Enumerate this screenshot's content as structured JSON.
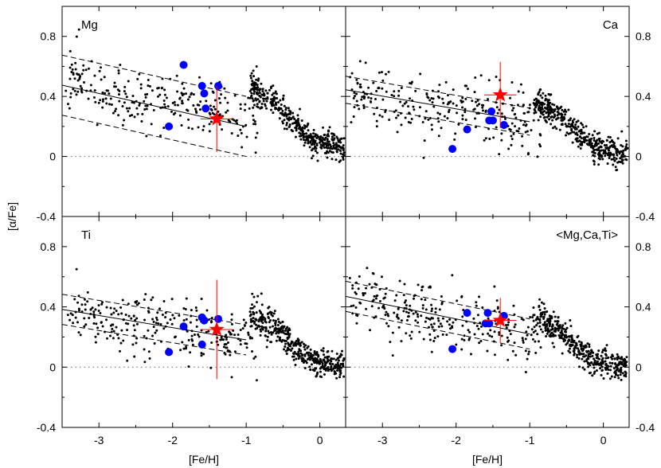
{
  "figure": {
    "xlabel": "[Fe/H]",
    "ylabel": "[α/Fe]"
  },
  "chart_data": {
    "type": "scatter",
    "xlim": [
      -3.5,
      0.35
    ],
    "ylim": [
      -0.4,
      1.0
    ],
    "x_ticks": [
      -3,
      -2,
      -1,
      0
    ],
    "x_tick_labels": [
      "-3",
      "-2",
      "-1",
      "0"
    ],
    "y_ticks": [
      -0.4,
      0,
      0.4,
      0.8
    ],
    "y_tick_labels": [
      "-0.4",
      "0",
      "0.4",
      "0.8"
    ],
    "colors": {
      "field": "#000000",
      "clusters": "#0000ff",
      "target": "#ff0000",
      "trend": "#000000"
    },
    "panels": [
      {
        "label": "Mg",
        "label_position": "top-left",
        "trend": {
          "slope": -0.11,
          "intercept": 0.09,
          "x_range": [
            -3.5,
            -1.0
          ],
          "band": 0.2
        },
        "field_cloud": {
          "seed": 11,
          "offset": 0.04,
          "knee": -0.65,
          "plateau_scale": 1.0
        },
        "clusters": [
          {
            "x": -1.85,
            "y": 0.61
          },
          {
            "x": -1.6,
            "y": 0.47
          },
          {
            "x": -1.38,
            "y": 0.47
          },
          {
            "x": -1.57,
            "y": 0.42
          },
          {
            "x": -1.55,
            "y": 0.32
          },
          {
            "x": -2.05,
            "y": 0.2
          }
        ],
        "target": {
          "x": -1.4,
          "y": 0.25,
          "xerr": 0.22,
          "yerr": 0.22
        }
      },
      {
        "label": "Ca",
        "label_position": "top-right",
        "trend": {
          "slope": -0.085,
          "intercept": 0.147,
          "x_range": [
            -3.5,
            -1.0
          ],
          "band": 0.09
        },
        "field_cloud": {
          "seed": 23,
          "offset": 0.0,
          "knee": -0.65,
          "plateau_scale": 0.85
        },
        "clusters": [
          {
            "x": -1.52,
            "y": 0.3
          },
          {
            "x": -1.55,
            "y": 0.24
          },
          {
            "x": -1.5,
            "y": 0.24
          },
          {
            "x": -1.35,
            "y": 0.21
          },
          {
            "x": -1.85,
            "y": 0.18
          },
          {
            "x": -2.05,
            "y": 0.05
          }
        ],
        "target": {
          "x": -1.4,
          "y": 0.41,
          "xerr": 0.22,
          "yerr": 0.22
        }
      },
      {
        "label": "Ti",
        "label_position": "top-left",
        "trend": {
          "slope": -0.081,
          "intercept": 0.1,
          "x_range": [
            -3.5,
            -1.0
          ],
          "band": 0.1
        },
        "field_cloud": {
          "seed": 37,
          "offset": -0.02,
          "knee": -0.65,
          "plateau_scale": 0.9
        },
        "clusters": [
          {
            "x": -1.6,
            "y": 0.33
          },
          {
            "x": -1.57,
            "y": 0.31
          },
          {
            "x": -1.38,
            "y": 0.32
          },
          {
            "x": -1.85,
            "y": 0.27
          },
          {
            "x": -1.6,
            "y": 0.15
          },
          {
            "x": -2.05,
            "y": 0.1
          }
        ],
        "target": {
          "x": -1.4,
          "y": 0.25,
          "xerr": 0.22,
          "yerr": 0.33
        }
      },
      {
        "label": "<Mg,Ca,Ti>",
        "label_position": "top-right",
        "trend": {
          "slope": -0.1,
          "intercept": 0.12,
          "x_range": [
            -3.5,
            -1.0
          ],
          "band": 0.1
        },
        "field_cloud": {
          "seed": 51,
          "offset": -0.01,
          "knee": -0.65,
          "plateau_scale": 0.8
        },
        "clusters": [
          {
            "x": -1.85,
            "y": 0.36
          },
          {
            "x": -1.57,
            "y": 0.36
          },
          {
            "x": -1.35,
            "y": 0.34
          },
          {
            "x": -1.55,
            "y": 0.29
          },
          {
            "x": -1.6,
            "y": 0.29
          },
          {
            "x": -2.05,
            "y": 0.12
          }
        ],
        "target": {
          "x": -1.4,
          "y": 0.31,
          "xerr": 0.22,
          "yerr": 0.15
        }
      }
    ]
  }
}
